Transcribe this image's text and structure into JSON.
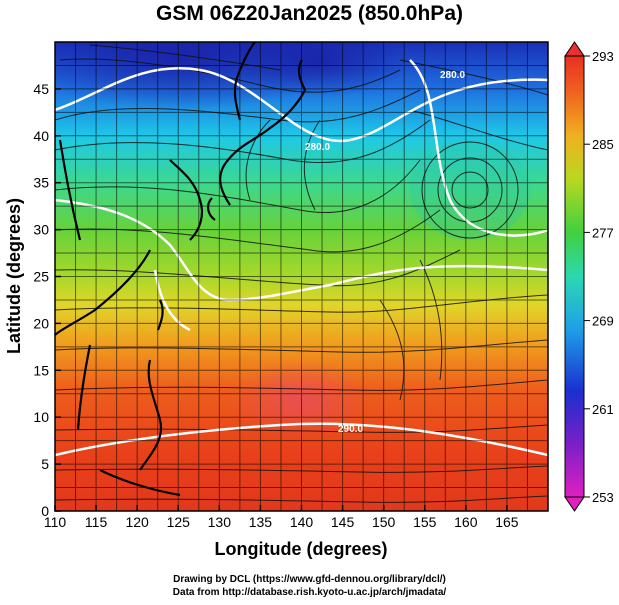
{
  "title": "GSM 06Z20Jan2025 (850.0hPa)",
  "xlabel": "Longitude (degrees)",
  "ylabel": "Latitude  (degrees)",
  "x_ticks": [
    "110",
    "115",
    "120",
    "125",
    "130",
    "135",
    "140",
    "145",
    "150",
    "155",
    "160",
    "165"
  ],
  "y_ticks": [
    "0",
    "5",
    "10",
    "15",
    "20",
    "25",
    "30",
    "35",
    "40",
    "45"
  ],
  "colorbar": {
    "ticks": [
      "253",
      "261",
      "269",
      "277",
      "285",
      "293"
    ],
    "range": [
      253,
      293
    ]
  },
  "contour_labels": [
    "280.0",
    "280.0",
    "290.0"
  ],
  "credits": {
    "line1": "Drawing by DCL (https://www.gfd-dennou.org/library/dcl/)",
    "line2": "Data from http://database.rish.kyoto-u.ac.jp/arch/jmadata/"
  },
  "map_data": {
    "lon_range": [
      110,
      170
    ],
    "lat_range": [
      0,
      50
    ],
    "field": "temperature",
    "units": "K",
    "overlays": [
      "isotherm contours",
      "wind streamlines",
      "coastlines"
    ]
  }
}
